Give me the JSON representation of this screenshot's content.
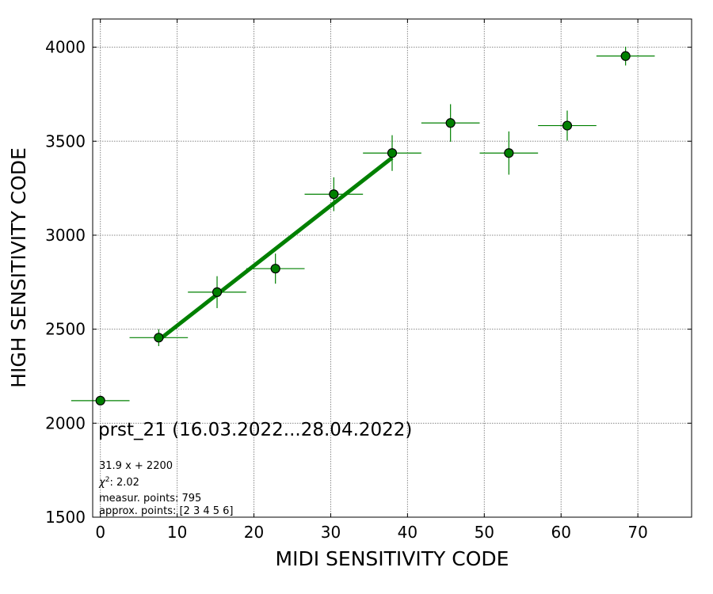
{
  "chart_data": {
    "type": "scatter",
    "xlabel": "MIDI SENSITIVITY CODE",
    "ylabel": "HIGH SENSITIVITY CODE",
    "xlim": [
      -1,
      77
    ],
    "ylim": [
      1500,
      4150
    ],
    "xticks": [
      0,
      10,
      20,
      30,
      40,
      50,
      60,
      70
    ],
    "yticks": [
      1500,
      2000,
      2500,
      3000,
      3500,
      4000
    ],
    "grid": true,
    "points": [
      {
        "x": 0.0,
        "y": 2120,
        "xerr": 3.8,
        "yerr": 0
      },
      {
        "x": 7.6,
        "y": 2455,
        "xerr": 3.8,
        "yerr": 45
      },
      {
        "x": 15.2,
        "y": 2697,
        "xerr": 3.8,
        "yerr": 85
      },
      {
        "x": 22.8,
        "y": 2822,
        "xerr": 3.8,
        "yerr": 80
      },
      {
        "x": 30.4,
        "y": 3218,
        "xerr": 3.8,
        "yerr": 90
      },
      {
        "x": 38.0,
        "y": 3437,
        "xerr": 3.8,
        "yerr": 95
      },
      {
        "x": 45.6,
        "y": 3597,
        "xerr": 3.8,
        "yerr": 100
      },
      {
        "x": 53.2,
        "y": 3437,
        "xerr": 3.8,
        "yerr": 115
      },
      {
        "x": 60.8,
        "y": 3583,
        "xerr": 3.8,
        "yerr": 80
      },
      {
        "x": 68.4,
        "y": 3953,
        "xerr": 3.8,
        "yerr": 50
      }
    ],
    "fit": {
      "slope": 31.9,
      "intercept": 2200,
      "x_range": [
        7.6,
        38.0
      ]
    },
    "colors": {
      "marker": "#008000",
      "fit": "#008000",
      "errorbar": "#008000",
      "grid": "#888888"
    },
    "annotation": {
      "title": "prst_21 (16.03.2022...28.04.2022)",
      "equation": "31.9 x + 2200",
      "chi2": "2.02",
      "measur_points": "measur. points: 795",
      "approx_points": "approx. points: [2 3 4 5 6]"
    }
  }
}
